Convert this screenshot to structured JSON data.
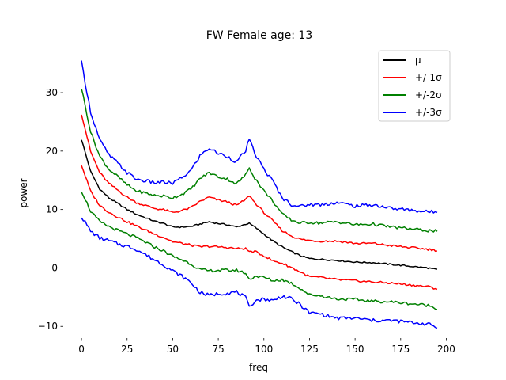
{
  "chart_data": {
    "type": "line",
    "title": "FW Female age: 13",
    "xlabel": "freq",
    "ylabel": "power",
    "xlim": [
      -10,
      205
    ],
    "ylim": [
      -12,
      38
    ],
    "xticks": [
      0,
      25,
      50,
      75,
      100,
      125,
      150,
      175,
      200
    ],
    "yticks": [
      -10,
      0,
      10,
      20,
      30
    ],
    "grid": false,
    "legend_position": "top-right",
    "legend": [
      {
        "label": "μ",
        "color": "#000000"
      },
      {
        "label": "+/-1σ",
        "color": "#ff0000"
      },
      {
        "label": "+/-2σ",
        "color": "#008000"
      },
      {
        "label": "+/-3σ",
        "color": "#0000ff"
      }
    ],
    "x": [
      0,
      5,
      10,
      15,
      20,
      25,
      30,
      35,
      40,
      45,
      50,
      55,
      60,
      65,
      70,
      75,
      80,
      85,
      90,
      92,
      95,
      100,
      105,
      110,
      115,
      120,
      125,
      130,
      140,
      150,
      160,
      170,
      180,
      190,
      195
    ],
    "mean": [
      22.0,
      16.5,
      13.5,
      12.0,
      11.0,
      10.0,
      9.2,
      8.6,
      8.0,
      7.6,
      7.0,
      7.0,
      7.1,
      7.5,
      7.9,
      7.6,
      7.4,
      7.0,
      7.5,
      7.6,
      7.0,
      5.8,
      4.6,
      3.6,
      2.8,
      2.1,
      1.6,
      1.5,
      1.3,
      1.0,
      0.9,
      0.6,
      0.3,
      0.0,
      -0.3
    ],
    "std": [
      4.4,
      3.4,
      2.8,
      2.45,
      2.3,
      2.1,
      2.0,
      2.1,
      2.2,
      2.35,
      2.5,
      2.8,
      3.2,
      3.9,
      4.2,
      4.0,
      3.9,
      3.7,
      4.2,
      4.8,
      4.2,
      3.7,
      3.4,
      2.8,
      2.7,
      2.8,
      3.1,
      3.1,
      3.3,
      3.2,
      3.3,
      3.2,
      3.2,
      3.2,
      3.3
    ],
    "series": [
      {
        "name": "μ",
        "color": "#000000",
        "k": 0
      },
      {
        "name": "+/-1σ",
        "color": "#ff0000",
        "k": 1
      },
      {
        "name": "+/-1σ",
        "color": "#ff0000",
        "k": -1
      },
      {
        "name": "+/-2σ",
        "color": "#008000",
        "k": 2
      },
      {
        "name": "+/-2σ",
        "color": "#008000",
        "k": -2
      },
      {
        "name": "+/-3σ",
        "color": "#0000ff",
        "k": 3
      },
      {
        "name": "+/-3σ",
        "color": "#0000ff",
        "k": -3
      }
    ]
  }
}
